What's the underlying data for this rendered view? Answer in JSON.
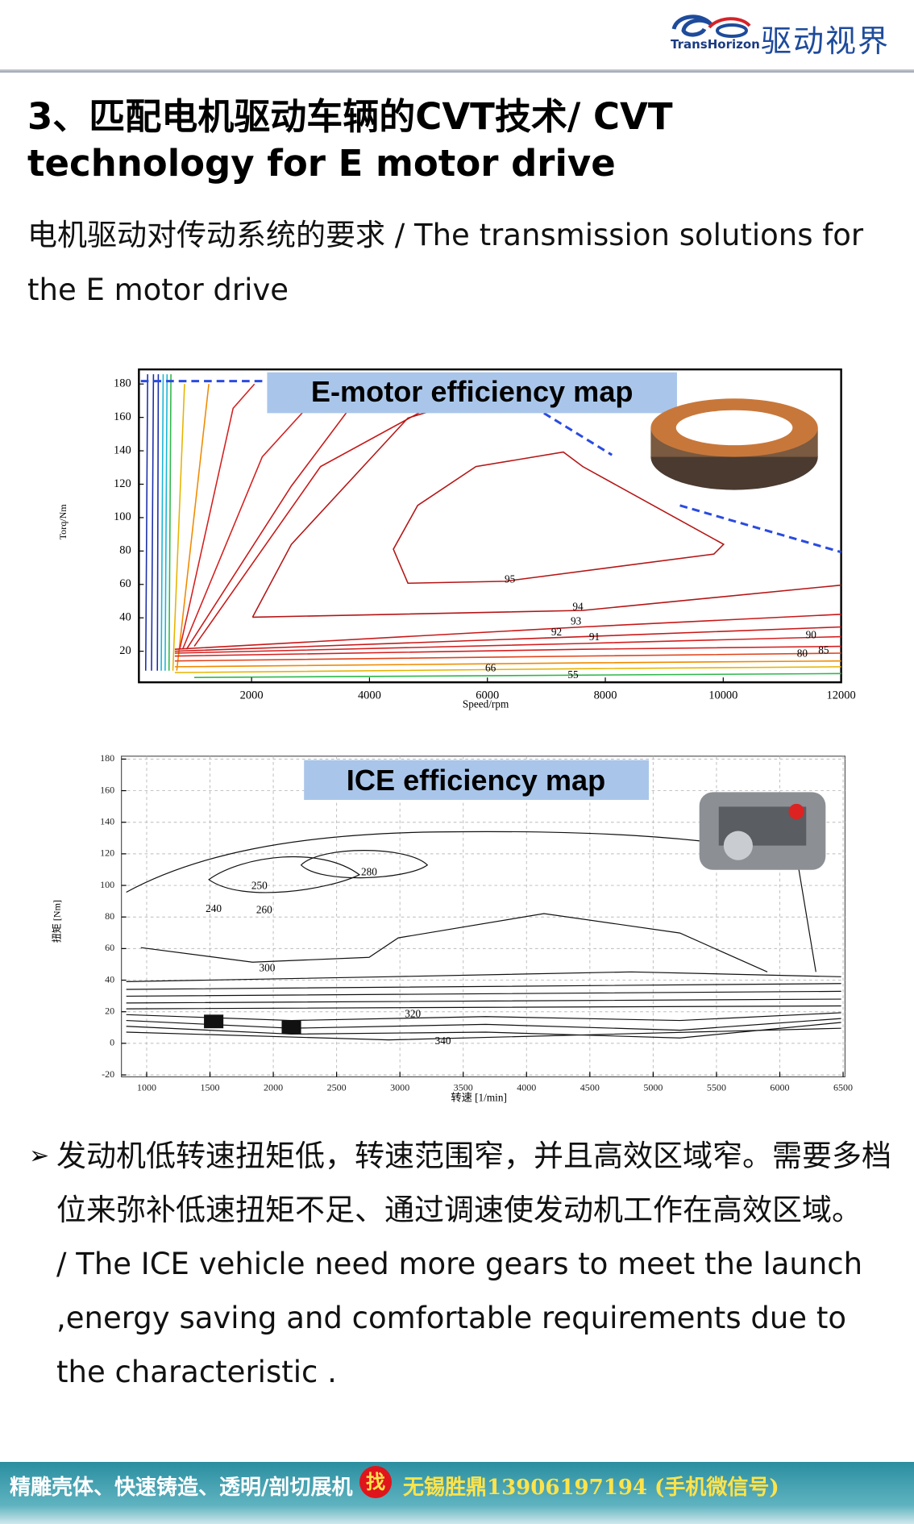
{
  "header": {
    "logo": "TransHorizon",
    "brand": "驱动视界"
  },
  "title": "3、匹配电机驱动车辆的CVT技术/ CVT technology for E motor drive",
  "subtitle": "电机驱动对传动系统的要求 / The transmission solutions for the E motor drive",
  "figures": [
    {
      "label": "E-motor efficiency map",
      "x_label": "Speed/rpm",
      "y_label": "Torq/Nm",
      "xticks": [
        2000,
        4000,
        6000,
        8000,
        10000,
        12000
      ],
      "yticks": [
        20,
        40,
        60,
        80,
        100,
        120,
        140,
        160,
        180
      ],
      "contour_labels": [
        95,
        94,
        93,
        92,
        91,
        90,
        85,
        80,
        66,
        55
      ]
    },
    {
      "label": "ICE efficiency map",
      "x_label": "转速 [1/min]",
      "y_label": "扭矩 [Nm]",
      "xticks": [
        1000,
        1500,
        2000,
        2500,
        3000,
        3500,
        4000,
        4500,
        5000,
        5500,
        6000,
        6500
      ],
      "yticks": [
        -20,
        0,
        20,
        40,
        60,
        80,
        100,
        120,
        140,
        160,
        180
      ],
      "contour_labels": [
        300,
        280,
        240,
        260,
        250,
        320,
        340
      ]
    }
  ],
  "bullet": {
    "zh": "发动机低转速扭矩低，转速范围窄，并且高效区域窄。需要多档位来弥补低速扭矩不足、通过调速使发动机工作在高效区域。",
    "en": "/ The ICE vehicle need more gears to meet the launch ,energy saving and comfortable requirements due to the characteristic ."
  },
  "footer": {
    "left": "精雕壳体、快速铸造、透明/剖切展机",
    "badge": "找",
    "right": "无锡胜鼎13906197194 (手机微信号)"
  }
}
